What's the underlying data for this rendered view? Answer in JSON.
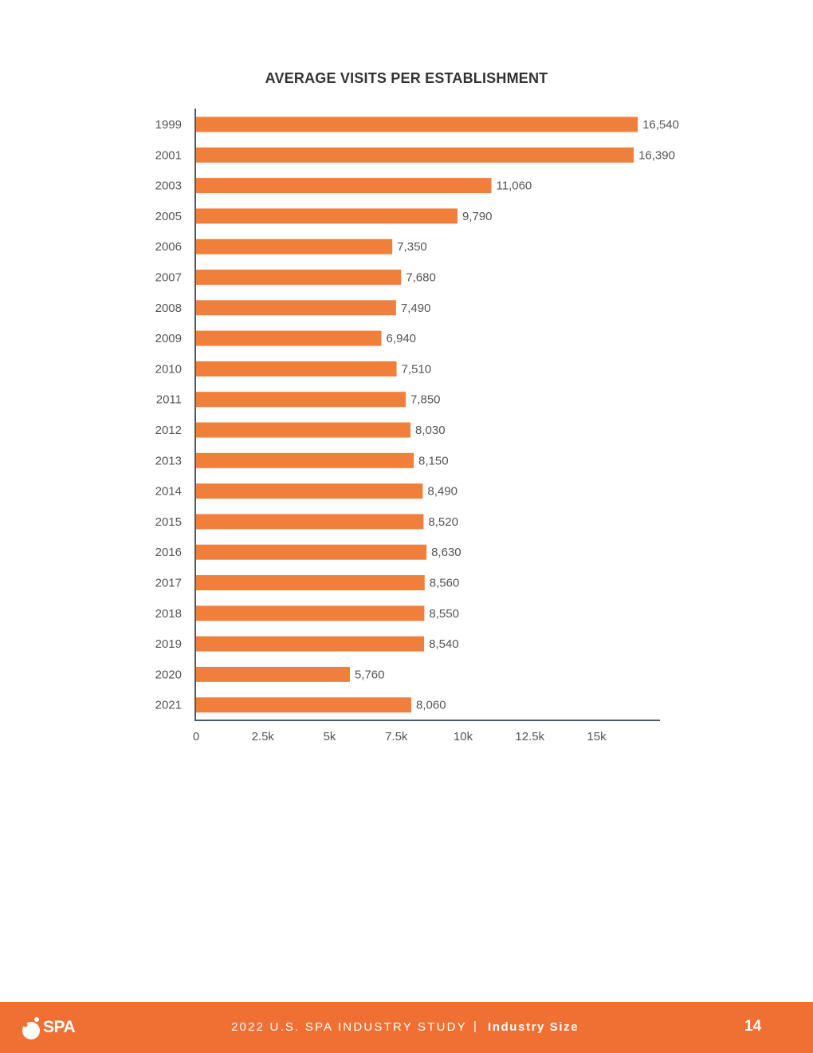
{
  "page": {
    "footer_study": "2022 U.S. SPA INDUSTRY STUDY",
    "footer_separator": "|",
    "footer_section": "Industry Size",
    "page_number": "14",
    "logo_text": "SPA"
  },
  "colors": {
    "bar": "#f07f3c",
    "axis": "#4d5a60",
    "label": "#555555",
    "footer": "#f07034"
  },
  "chart_data": {
    "type": "bar",
    "orientation": "horizontal",
    "title": "AVERAGE VISITS PER ESTABLISHMENT",
    "categories": [
      "1999",
      "2001",
      "2003",
      "2005",
      "2006",
      "2007",
      "2008",
      "2009",
      "2010",
      "2011",
      "2012",
      "2013",
      "2014",
      "2015",
      "2016",
      "2017",
      "2018",
      "2019",
      "2020",
      "2021"
    ],
    "values": [
      16540,
      16390,
      11060,
      9790,
      7350,
      7680,
      7490,
      6940,
      7510,
      7850,
      8030,
      8150,
      8490,
      8520,
      8630,
      8560,
      8550,
      8540,
      5760,
      8060
    ],
    "value_labels": [
      "16,540",
      "16,390",
      "11,060",
      "9,790",
      "7,350",
      "7,680",
      "7,490",
      "6,940",
      "7,510",
      "7,850",
      "8,030",
      "8,150",
      "8,490",
      "8,520",
      "8,630",
      "8,560",
      "8,550",
      "8,540",
      "5,760",
      "8,060"
    ],
    "xticks": [
      0,
      2500,
      5000,
      7500,
      10000,
      12500,
      15000
    ],
    "xtick_labels": [
      "0",
      "2.5k",
      "5k",
      "7.5k",
      "10k",
      "12.5k",
      "15k"
    ],
    "xlim": [
      0,
      17400
    ],
    "grid": false,
    "legend": "none"
  }
}
